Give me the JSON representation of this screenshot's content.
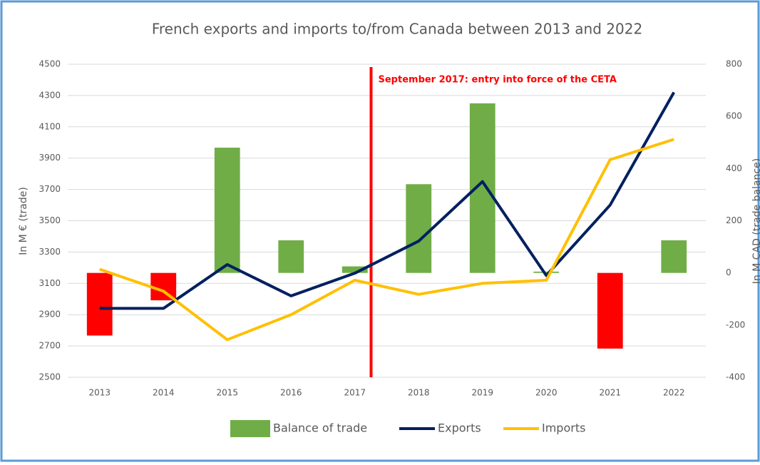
{
  "chart_data": {
    "type": "bar_line_combo",
    "title": "French exports and imports to/from Canada between 2013 and 2022",
    "annotation": "September 2017: entry into force of the CETA",
    "y_label": "In M € (trade)",
    "y2_label": "In M CAD (trade balance)",
    "categories": [
      "2013",
      "2014",
      "2015",
      "2016",
      "2017",
      "2018",
      "2019",
      "2020",
      "2021",
      "2022"
    ],
    "series": [
      {
        "name": "Balance of trade",
        "type": "bar",
        "axis": "y2",
        "color": "#70ad47",
        "negative_color": "#ff0000",
        "values": [
          -240,
          -105,
          480,
          125,
          25,
          340,
          650,
          5,
          -290,
          125
        ]
      },
      {
        "name": "Exports",
        "type": "line",
        "color": "#002060",
        "values": [
          2940,
          2940,
          3220,
          3020,
          3165,
          3370,
          3750,
          3150,
          3600,
          4320
        ]
      },
      {
        "name": "Imports",
        "type": "line",
        "color": "#ffc000",
        "values": [
          3190,
          3050,
          2740,
          2900,
          3120,
          3030,
          3100,
          3120,
          3890,
          4020
        ]
      }
    ],
    "ylim": [
      2500,
      4500
    ],
    "yticks": [
      2500,
      2700,
      2900,
      3100,
      3300,
      3500,
      3700,
      3900,
      4100,
      4300,
      4500
    ],
    "y2lim": [
      -400,
      800
    ],
    "y2ticks": [
      -400,
      -200,
      0,
      200,
      400,
      600,
      800
    ],
    "grid": true,
    "legend": "bottom"
  }
}
